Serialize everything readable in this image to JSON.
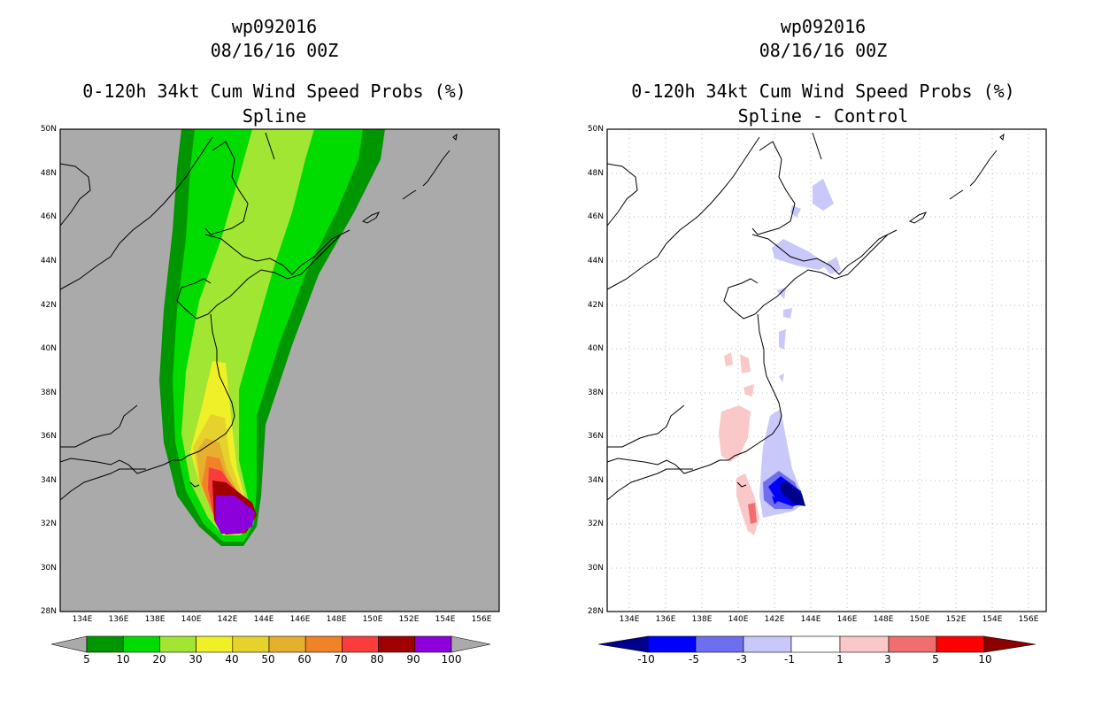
{
  "left_panel": {
    "storm_id": "wp092016",
    "datetime": "08/16/16 00Z",
    "product": "0-120h 34kt Cum Wind Speed Probs (%)",
    "subtitle": "Spline",
    "colorbar_labels": [
      "5",
      "10",
      "20",
      "30",
      "40",
      "50",
      "60",
      "70",
      "80",
      "90",
      "100"
    ],
    "colorbar_colors": [
      "#009600",
      "#00dc00",
      "#a0e632",
      "#f0f028",
      "#e6d22d",
      "#e6af2d",
      "#f08228",
      "#fa3c3c",
      "#a00000",
      "#8c00dc"
    ]
  },
  "right_panel": {
    "storm_id": "wp092016",
    "datetime": "08/16/16 00Z",
    "product": "0-120h 34kt Cum Wind Speed Probs (%)",
    "subtitle": "Spline - Control",
    "colorbar_labels": [
      "-10",
      "-5",
      "-3",
      "-1",
      "1",
      "3",
      "5",
      "10"
    ],
    "colorbar_colors": [
      "#00008c",
      "#0000ff",
      "#6e6ef0",
      "#c8c8fa",
      "#ffffff",
      "#fac8c8",
      "#f06e6e",
      "#ff0000",
      "#8c0000"
    ]
  },
  "lat_labels": [
    "50N",
    "48N",
    "46N",
    "44N",
    "42N",
    "40N",
    "38N",
    "36N",
    "34N",
    "32N",
    "30N",
    "28N"
  ],
  "lon_labels": [
    "134E",
    "136E",
    "138E",
    "140E",
    "142E",
    "144E",
    "146E",
    "148E",
    "150E",
    "152E",
    "154E",
    "156E"
  ],
  "colors": {
    "land_sea_bg": "#aaaaaa",
    "coast": "#000000"
  }
}
